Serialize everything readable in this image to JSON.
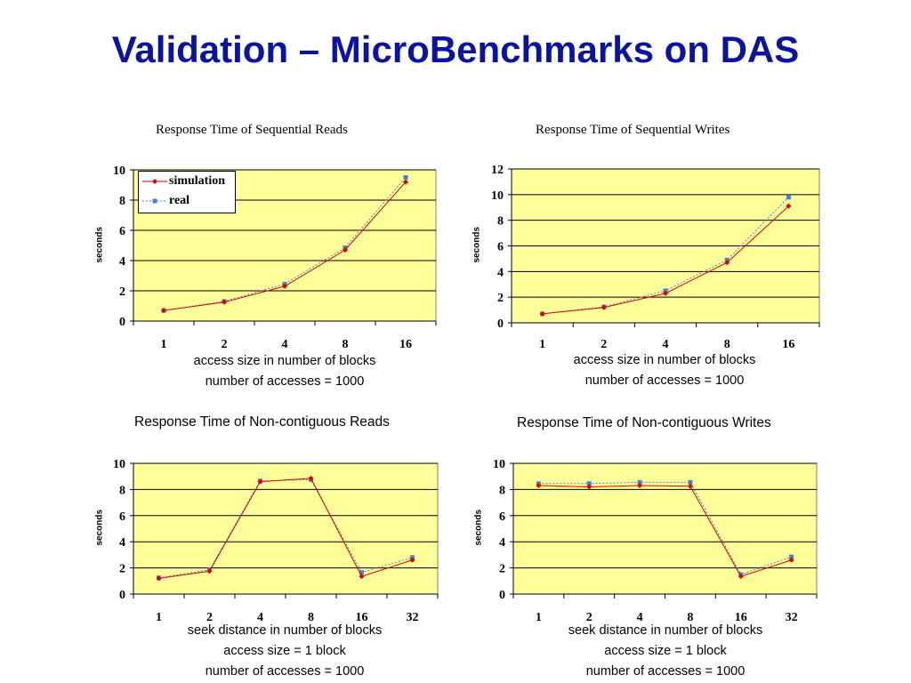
{
  "slide": {
    "title": "Validation – MicroBenchmarks on DAS",
    "accent_color": "#0a14a0",
    "plot_background": "#ffff99"
  },
  "chart_data": [
    {
      "type": "line",
      "title": "Response Time of Sequential Reads",
      "ylabel": "seconds",
      "xlabel": "access size in number of blocks",
      "subcaption": [
        "number of accesses = 1000"
      ],
      "categories": [
        "1",
        "2",
        "4",
        "8",
        "16"
      ],
      "ylim": [
        0,
        10
      ],
      "yticks": [
        0,
        2,
        4,
        6,
        8,
        10
      ],
      "grid": true,
      "legend": "top-left",
      "series": [
        {
          "name": "simulation",
          "color": "#e00000",
          "style": "solid",
          "marker": "diamond",
          "values": [
            0.7,
            1.25,
            2.3,
            4.7,
            9.2
          ]
        },
        {
          "name": "real",
          "color": "#4a7fd4",
          "style": "dotted",
          "marker": "square",
          "values": [
            0.7,
            1.3,
            2.45,
            4.85,
            9.5
          ]
        }
      ]
    },
    {
      "type": "line",
      "title": "Response Time of Sequential Writes",
      "ylabel": "seconds",
      "xlabel": "access size in number of blocks",
      "subcaption": [
        "number of accesses = 1000"
      ],
      "categories": [
        "1",
        "2",
        "4",
        "8",
        "16"
      ],
      "ylim": [
        0,
        12
      ],
      "yticks": [
        0,
        2,
        4,
        6,
        8,
        10,
        12
      ],
      "grid": true,
      "series": [
        {
          "name": "simulation",
          "color": "#e00000",
          "style": "solid",
          "marker": "diamond",
          "values": [
            0.7,
            1.2,
            2.3,
            4.7,
            9.1
          ]
        },
        {
          "name": "real",
          "color": "#4a7fd4",
          "style": "dotted",
          "marker": "square",
          "values": [
            0.7,
            1.25,
            2.5,
            4.9,
            9.8
          ]
        }
      ]
    },
    {
      "type": "line",
      "title": "Response Time of Non-contiguous Reads",
      "ylabel": "seconds",
      "xlabel": "seek distance in number of blocks",
      "subcaption": [
        "access size = 1 block",
        "number of accesses = 1000"
      ],
      "categories": [
        "1",
        "2",
        "4",
        "8",
        "16",
        "32"
      ],
      "ylim": [
        0,
        10
      ],
      "yticks": [
        0,
        2,
        4,
        6,
        8,
        10
      ],
      "grid": true,
      "series": [
        {
          "name": "simulation",
          "color": "#e00000",
          "style": "solid",
          "marker": "diamond",
          "values": [
            1.2,
            1.75,
            8.6,
            8.85,
            1.35,
            2.6
          ]
        },
        {
          "name": "real",
          "color": "#4a7fd4",
          "style": "dotted",
          "marker": "square",
          "values": [
            1.25,
            1.85,
            8.65,
            8.75,
            1.65,
            2.8
          ]
        }
      ]
    },
    {
      "type": "line",
      "title": "Response Time of Non-contiguous Writes",
      "ylabel": "seconds",
      "xlabel": "seek distance in number of blocks",
      "subcaption": [
        "access size = 1 block",
        "number of accesses = 1000"
      ],
      "categories": [
        "1",
        "2",
        "4",
        "8",
        "16",
        "32"
      ],
      "ylim": [
        0,
        10
      ],
      "yticks": [
        0,
        2,
        4,
        6,
        8,
        10
      ],
      "grid": true,
      "series": [
        {
          "name": "simulation",
          "color": "#e00000",
          "style": "solid",
          "marker": "diamond",
          "values": [
            8.3,
            8.2,
            8.3,
            8.25,
            1.35,
            2.6
          ]
        },
        {
          "name": "real",
          "color": "#4a7fd4",
          "style": "dotted",
          "marker": "square",
          "values": [
            8.45,
            8.45,
            8.55,
            8.55,
            1.5,
            2.85
          ]
        }
      ]
    }
  ]
}
